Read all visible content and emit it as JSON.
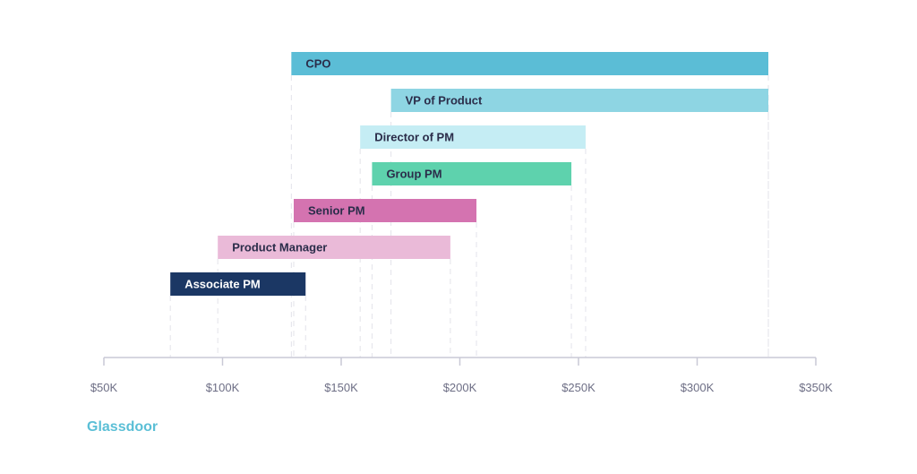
{
  "chart_data": {
    "type": "bar",
    "orientation": "horizontal-range",
    "title": "",
    "xlabel": "",
    "ylabel": "",
    "xlim": [
      50,
      350
    ],
    "x_unit": "thousand USD",
    "x_ticks": [
      50,
      100,
      150,
      200,
      250,
      300,
      350
    ],
    "x_tick_labels": [
      "$50K",
      "$100K",
      "$150K",
      "$200K",
      "$250K",
      "$300K",
      "$350K"
    ],
    "grid": "dashed vertical guides at bar ends",
    "series": [
      {
        "name": "CPO",
        "low": 129,
        "high": 330,
        "color": "#5bbdd6",
        "label_color": "#2b2d4a"
      },
      {
        "name": "VP of Product",
        "low": 171,
        "high": 330,
        "color": "#8ed5e3",
        "label_color": "#2b2d4a"
      },
      {
        "name": "Director of PM",
        "low": 158,
        "high": 253,
        "color": "#c5edf4",
        "label_color": "#2b2d4a"
      },
      {
        "name": "Group PM",
        "low": 163,
        "high": 247,
        "color": "#5ed2ad",
        "label_color": "#2b2d4a"
      },
      {
        "name": "Senior PM",
        "low": 130,
        "high": 207,
        "color": "#d473b0",
        "label_color": "#2b2d4a"
      },
      {
        "name": "Product Manager",
        "low": 98,
        "high": 196,
        "color": "#eabad8",
        "label_color": "#2b2d4a"
      },
      {
        "name": "Associate PM",
        "low": 78,
        "high": 135,
        "color": "#1b3764",
        "label_color": "#ffffff"
      }
    ]
  },
  "source": "Glassdoor"
}
